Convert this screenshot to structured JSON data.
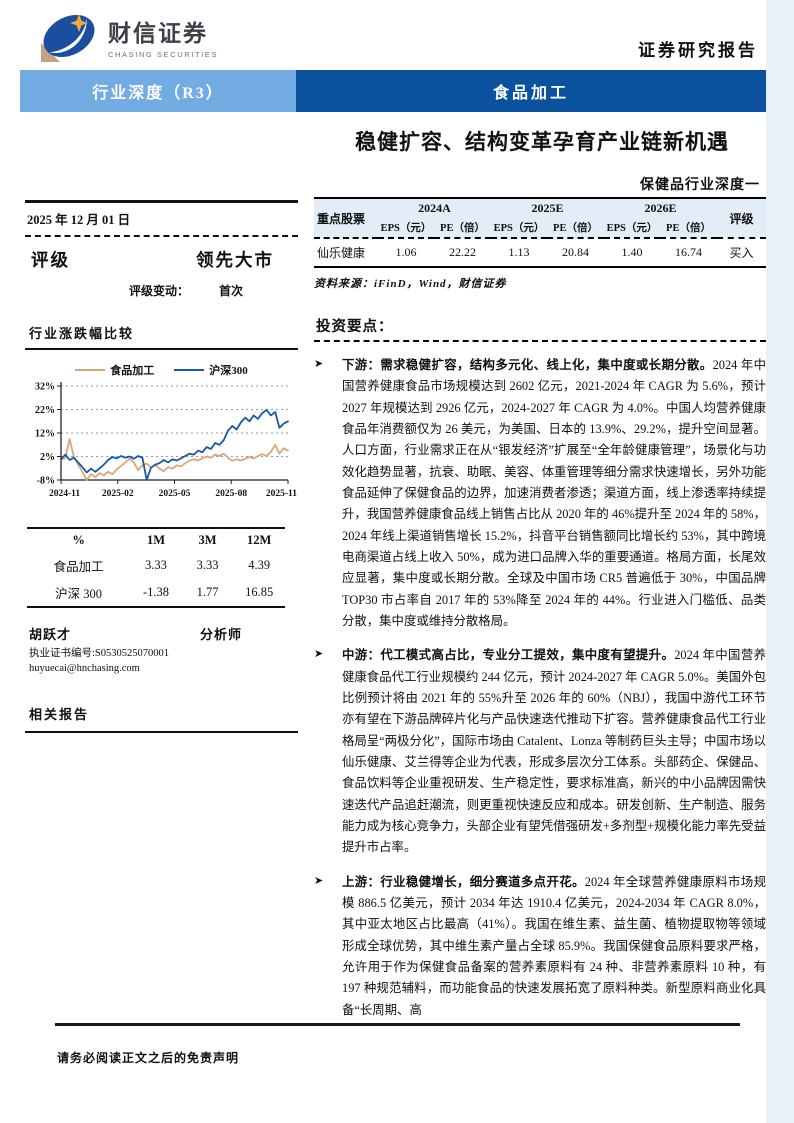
{
  "brand": {
    "name_cn": "财信证券",
    "name_en": "CHASING SECURITIES"
  },
  "header": {
    "doc_type": "证券研究报告"
  },
  "banner": {
    "left": "行业深度（R3）",
    "right": "食品加工"
  },
  "title": "稳健扩容、结构变革孕育产业链新机遇",
  "subtitle": "保健品行业深度一",
  "sidebar": {
    "date": "2025 年 12 月 01 日",
    "rating_label": "评级",
    "rating_value": "领先大市",
    "rating_change_label": "评级变动：",
    "rating_change_value": "首次",
    "chart_title": "行业涨跌幅比较",
    "perf_table": {
      "headers": [
        "%",
        "1M",
        "3M",
        "12M"
      ],
      "rows": [
        [
          "食品加工",
          "3.33",
          "3.33",
          "4.39"
        ],
        [
          "沪深 300",
          "-1.38",
          "1.77",
          "16.85"
        ]
      ]
    },
    "analyst": {
      "name": "胡跃才",
      "role": "分析师",
      "cert": "执业证书编号:S0530525070001",
      "email": "huyuecai@hnchasing.com"
    },
    "related_reports_title": "相关报告"
  },
  "stock_table": {
    "col_label": "重点股票",
    "years": [
      "2024A",
      "2025E",
      "2026E"
    ],
    "sub_headers": [
      "EPS（元）",
      "PE（倍）",
      "EPS（元）",
      "PE（倍）",
      "EPS（元）",
      "PE（倍）"
    ],
    "rating_col": "评级",
    "rows": [
      {
        "name": "仙乐健康",
        "values": [
          "1.06",
          "22.22",
          "1.13",
          "20.84",
          "1.40",
          "16.74"
        ],
        "rating": "买入"
      }
    ],
    "source": "资料来源：iFinD，Wind，财信证券"
  },
  "highlights": {
    "title": "投资要点：",
    "bullets": [
      {
        "lead": "下游：需求稳健扩容，结构多元化、线上化，集中度或长期分散。",
        "body": "2024 年中国营养健康食品市场规模达到 2602 亿元，2021-2024 年 CAGR 为 5.6%，预计 2027 年规模达到 2926 亿元，2024-2027 年 CAGR 为 4.0%。中国人均营养健康食品年消费额仅为 26 美元，为美国、日本的 13.9%、29.2%，提升空间显著。人口方面，行业需求正在从“银发经济”扩展至“全年龄健康管理”，场景化与功效化趋势显著，抗衰、助眠、美容、体重管理等细分需求快速增长，另外功能食品延伸了保健食品的边界，加速消费者渗透；渠道方面，线上渗透率持续提升，我国营养健康食品线上销售占比从 2020 年的 46%提升至 2024 年的 58%，2024 年线上渠道销售增长 15.2%，抖音平台销售额同比增长约 53%，其中跨境电商渠道占线上收入 50%，成为进口品牌入华的重要通道。格局方面，长尾效应显著，集中度或长期分散。全球及中国市场 CR5 普遍低于 30%，中国品牌 TOP30 市占率自 2017 年的 53%降至 2024 年的 44%。行业进入门槛低、品类分散，集中度或维持分散格局。"
      },
      {
        "lead": "中游：代工模式高占比，专业分工提效，集中度有望提升。",
        "body": "2024 年中国营养健康食品代工行业规模约 244 亿元，预计 2024-2027 年 CAGR 5.0%。美国外包比例预计将由 2021 年的 55%升至 2026 年的 60%（NBJ），我国中游代工环节亦有望在下游品牌碎片化与产品快速迭代推动下扩容。营养健康食品代工行业格局呈“两极分化”，国际市场由 Catalent、Lonza 等制药巨头主导；中国市场以仙乐健康、艾兰得等企业为代表，形成多层次分工体系。头部药企、保健品、食品饮料等企业重视研发、生产稳定性，要求标准高，新兴的中小品牌因需快速迭代产品追赶潮流，则更重视快速反应和成本。研发创新、生产制造、服务能力成为核心竞争力，头部企业有望凭借强研发+多剂型+规模化能力率先受益提升市占率。"
      },
      {
        "lead": "上游：行业稳健增长，细分赛道多点开花。",
        "body": "2024 年全球营养健康原料市场规模 886.5 亿美元，预计 2034 年达 1910.4 亿美元，2024-2034 年 CAGR 8.0%，其中亚太地区占比最高（41%）。我国在维生素、益生菌、植物提取物等领域形成全球优势，其中维生素产量占全球 85.9%。我国保健食品原料要求严格，允许用于作为保健食品备案的营养素原料有 24 种、非营养素原料 10 种，有 197 种规范辅料，而功能食品的快速发展拓宽了原料种类。新型原料商业化具备“长周期、高"
      }
    ]
  },
  "footer": "请务必阅读正文之后的免责声明",
  "colors": {
    "banner-light": "#72ACE3",
    "banner-dark": "#0A529E",
    "table-header-bg": "#E2EDF8",
    "edge-strip": "#E8F1FA"
  },
  "chart_data": {
    "type": "line",
    "title": "行业涨跌幅比较",
    "ylim": [
      -8,
      32
    ],
    "yticks": [
      {
        "label": "32%",
        "value": 32
      },
      {
        "label": "22%",
        "value": 22
      },
      {
        "label": "12%",
        "value": 12
      },
      {
        "label": "2%",
        "value": 2
      },
      {
        "label": "-8%",
        "value": -8
      }
    ],
    "xticks": [
      "2024-11",
      "2025-02",
      "2025-05",
      "2025-08",
      "2025-11"
    ],
    "legend_position": "top",
    "grid": "dashed-horizontal",
    "series": [
      {
        "name": "食品加工",
        "color": "#D7A77B",
        "values": [
          0.8,
          1.2,
          9.5,
          2.0,
          -1.5,
          -4.5,
          -8.0,
          -5.5,
          -6.8,
          -5.0,
          -6.0,
          -4.5,
          -5.5,
          -3.5,
          -2.0,
          -0.5,
          1.0,
          -0.5,
          -3.8,
          -1.8,
          -1.0,
          -2.8,
          -1.5,
          -3.2,
          -4.2,
          -2.5,
          -3.2,
          -1.8,
          -2.2,
          -0.8,
          0.2,
          0.8,
          0.3,
          1.2,
          2.0,
          1.5,
          2.8,
          2.2,
          3.2,
          1.5,
          0.2,
          0.8,
          0.3,
          1.0,
          1.8,
          1.2,
          2.2,
          3.0,
          2.2,
          4.0,
          7.0,
          3.2,
          5.5,
          4.5
        ]
      },
      {
        "name": "沪深300",
        "color": "#1858A6",
        "values": [
          0.8,
          2.8,
          0.5,
          1.5,
          -0.5,
          -2.5,
          -4.8,
          -3.2,
          -4.5,
          -3.0,
          -1.5,
          0.5,
          1.8,
          1.2,
          2.2,
          1.5,
          2.0,
          1.0,
          2.2,
          1.5,
          -8.0,
          -2.8,
          -1.5,
          -0.8,
          0.5,
          -0.5,
          0.8,
          0.3,
          1.2,
          2.2,
          3.2,
          2.8,
          4.5,
          3.8,
          6.0,
          5.2,
          7.8,
          7.0,
          9.0,
          13.0,
          15.0,
          13.5,
          16.5,
          18.5,
          17.0,
          19.5,
          18.0,
          20.5,
          21.8,
          19.5,
          21.0,
          14.2,
          16.0,
          17.0
        ]
      }
    ]
  }
}
